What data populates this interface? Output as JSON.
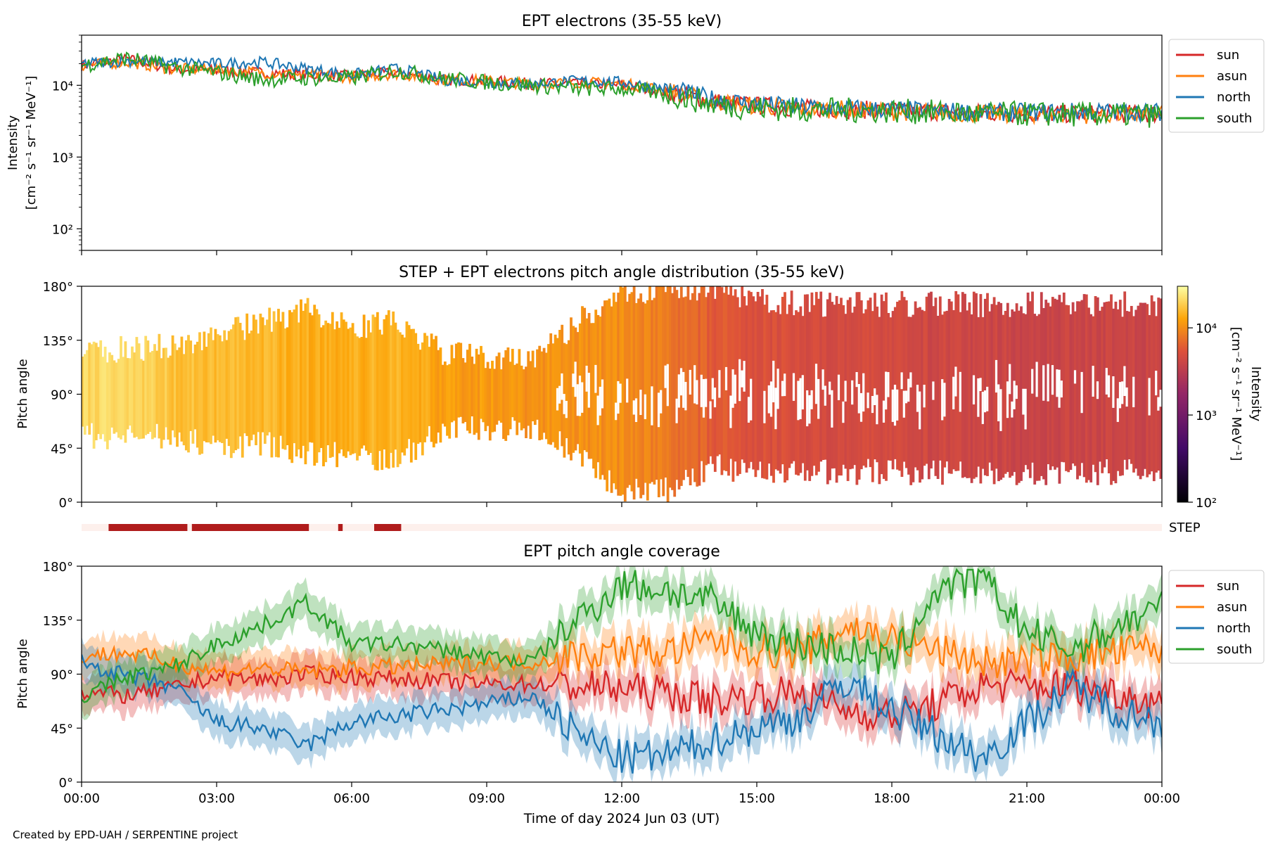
{
  "footer": "Created by EPD-UAH / SERPENTINE project",
  "colors": {
    "sun": "#d62728",
    "asun": "#ff7f0e",
    "north": "#1f77b4",
    "south": "#2ca02c",
    "step_bar": "#b01c1c",
    "step_bg": "#fdf0ec"
  },
  "chart_data": [
    {
      "type": "line",
      "title": "EPT electrons (35-55 keV)",
      "ylabel": "Intensity",
      "ylabel_unit": "[cm⁻² s⁻¹ sr⁻¹ MeV⁻¹]",
      "yscale": "log",
      "ylim": [
        50,
        50000
      ],
      "yticks": [
        "10²",
        "10³",
        "10⁴"
      ],
      "x": [
        0,
        1,
        2,
        3,
        4,
        5,
        6,
        7,
        8,
        9,
        10,
        11,
        12,
        13,
        14,
        15,
        16,
        17,
        18,
        19,
        20,
        21,
        22,
        23,
        24
      ],
      "legend": "upper-right-outside",
      "series": [
        {
          "name": "sun",
          "values": [
            19000,
            23000,
            17000,
            16000,
            15000,
            14000,
            13500,
            15000,
            12000,
            11500,
            10500,
            10500,
            10000,
            8000,
            6000,
            5200,
            4800,
            4600,
            4500,
            4300,
            4100,
            4000,
            4000,
            4000,
            4000
          ]
        },
        {
          "name": "asun",
          "values": [
            19000,
            21000,
            17000,
            16500,
            15000,
            14000,
            13000,
            14500,
            12000,
            11500,
            10500,
            11000,
            10500,
            8500,
            5800,
            5200,
            4700,
            4600,
            4300,
            4200,
            4000,
            4000,
            3900,
            3900,
            3900
          ]
        },
        {
          "name": "north",
          "values": [
            20000,
            22000,
            21000,
            20000,
            21000,
            17000,
            14000,
            17000,
            12000,
            11000,
            10500,
            11500,
            11000,
            9000,
            6500,
            5500,
            5000,
            4800,
            4600,
            4400,
            4200,
            4200,
            4300,
            4300,
            4200
          ]
        },
        {
          "name": "south",
          "values": [
            19000,
            24000,
            18000,
            15000,
            12000,
            12500,
            12500,
            16000,
            12500,
            11000,
            10000,
            9000,
            9000,
            7500,
            5500,
            4800,
            4600,
            4500,
            4400,
            4200,
            4000,
            4000,
            3900,
            3900,
            3800
          ]
        }
      ]
    },
    {
      "type": "heatmap",
      "title": "STEP + EPT electrons pitch angle distribution (35-55 keV)",
      "ylabel": "Pitch angle",
      "yticks": [
        "0°",
        "45°",
        "90°",
        "135°",
        "180°"
      ],
      "colorbar_label": "Intensity",
      "colorbar_unit": "[cm⁻² s⁻¹ sr⁻¹ MeV⁻¹]",
      "colorbar_scale": "log",
      "colorbar_range": [
        100,
        30000
      ],
      "colorbar_ticks": [
        "10²",
        "10³",
        "10⁴"
      ],
      "x": [
        0,
        1,
        2,
        3,
        4,
        5,
        6,
        7,
        8,
        9,
        10,
        11,
        12,
        13,
        14,
        15,
        16,
        17,
        18,
        19,
        20,
        21,
        22,
        23,
        24
      ],
      "pa_min": [
        55,
        55,
        55,
        45,
        50,
        40,
        40,
        35,
        60,
        62,
        62,
        40,
        10,
        10,
        30,
        25,
        25,
        25,
        25,
        25,
        25,
        25,
        25,
        25,
        25
      ],
      "pa_max": [
        125,
        128,
        130,
        140,
        150,
        160,
        145,
        150,
        125,
        120,
        118,
        150,
        175,
        178,
        178,
        170,
        165,
        165,
        165,
        165,
        165,
        165,
        165,
        165,
        165
      ],
      "intensity": [
        20000,
        22000,
        17000,
        16000,
        15000,
        14000,
        13500,
        15000,
        12000,
        11500,
        10500,
        10500,
        10000,
        8000,
        6000,
        5200,
        4800,
        4600,
        4500,
        4300,
        4100,
        4000,
        4000,
        4000,
        4000
      ]
    },
    {
      "type": "timeline",
      "label": "STEP",
      "segments": [
        [
          0.6,
          2.35
        ],
        [
          2.45,
          5.05
        ],
        [
          5.7,
          5.8
        ],
        [
          6.5,
          7.1
        ]
      ]
    },
    {
      "type": "line",
      "title": "EPT pitch angle coverage",
      "ylabel": "Pitch angle",
      "xlabel": "Time of day 2024 Jun 03 (UT)",
      "ylim": [
        0,
        180
      ],
      "yticks": [
        "0°",
        "45°",
        "90°",
        "135°",
        "180°"
      ],
      "xticks": [
        "00:00",
        "03:00",
        "06:00",
        "09:00",
        "12:00",
        "15:00",
        "18:00",
        "21:00",
        "00:00"
      ],
      "x": [
        0,
        1,
        2,
        3,
        4,
        5,
        6,
        7,
        8,
        9,
        10,
        11,
        12,
        13,
        14,
        15,
        16,
        17,
        18,
        19,
        20,
        21,
        22,
        23,
        24
      ],
      "band": "±15° shaded",
      "legend": "upper-right-outside",
      "series": [
        {
          "name": "sun",
          "values": [
            75,
            72,
            78,
            88,
            85,
            90,
            88,
            86,
            84,
            82,
            82,
            80,
            78,
            74,
            68,
            72,
            75,
            60,
            55,
            65,
            80,
            80,
            80,
            75,
            65
          ]
        },
        {
          "name": "asun",
          "values": [
            105,
            108,
            100,
            92,
            95,
            92,
            95,
            96,
            98,
            100,
            100,
            106,
            110,
            108,
            118,
            110,
            108,
            130,
            120,
            110,
            100,
            100,
            105,
            108,
            112
          ]
        },
        {
          "name": "north",
          "values": [
            100,
            88,
            80,
            50,
            45,
            30,
            50,
            55,
            60,
            65,
            72,
            40,
            20,
            22,
            35,
            45,
            55,
            85,
            60,
            40,
            20,
            50,
            80,
            60,
            50
          ]
        },
        {
          "name": "south",
          "values": [
            70,
            88,
            95,
            115,
            130,
            150,
            115,
            115,
            110,
            105,
            100,
            135,
            165,
            160,
            150,
            125,
            115,
            110,
            100,
            160,
            170,
            125,
            110,
            130,
            145
          ]
        }
      ]
    }
  ]
}
